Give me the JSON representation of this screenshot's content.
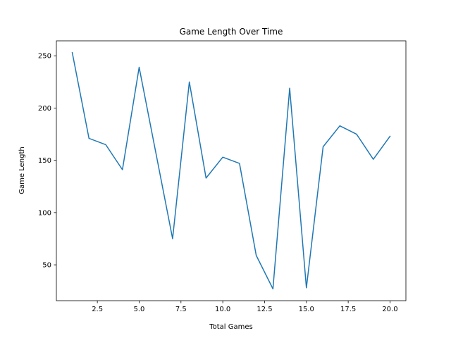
{
  "chart_data": {
    "type": "line",
    "title": "Game Length Over Time",
    "xlabel": "Total Games",
    "ylabel": "Game Length",
    "xlim": [
      0.05,
      20.95
    ],
    "ylim": [
      15.7,
      264.3
    ],
    "xticks": [
      2.5,
      5.0,
      7.5,
      10.0,
      12.5,
      15.0,
      17.5,
      20.0
    ],
    "xtick_labels": [
      "2.5",
      "5.0",
      "7.5",
      "10.0",
      "12.5",
      "15.0",
      "17.5",
      "20.0"
    ],
    "yticks": [
      50,
      100,
      150,
      200,
      250
    ],
    "ytick_labels": [
      "50",
      "100",
      "150",
      "200",
      "250"
    ],
    "grid": false,
    "series": [
      {
        "color": "#1f77b4",
        "x": [
          1,
          2,
          3,
          4,
          5,
          6,
          7,
          8,
          9,
          10,
          11,
          12,
          13,
          14,
          15,
          16,
          17,
          18,
          19,
          20
        ],
        "y": [
          253,
          171,
          165,
          141,
          239,
          157,
          75,
          225,
          133,
          153,
          147,
          59,
          27,
          219,
          28,
          163,
          183,
          175,
          151,
          173
        ]
      }
    ]
  }
}
